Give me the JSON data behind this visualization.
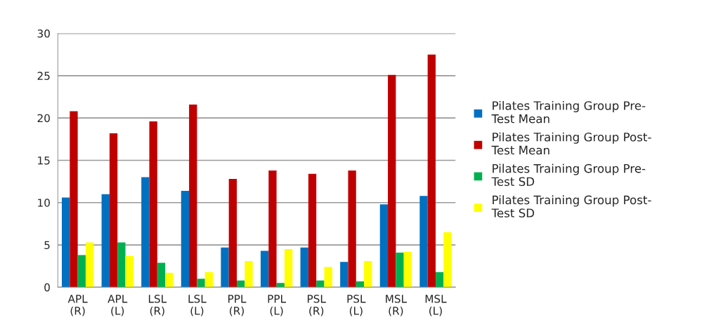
{
  "chart_data": {
    "type": "bar",
    "categories": [
      "APL\n(R)",
      "APL\n(L)",
      "LSL\n(R)",
      "LSL\n(L)",
      "PPL\n(R)",
      "PPL\n(L)",
      "PSL\n(R)",
      "PSL\n(L)",
      "MSL\n(R)",
      "MSL\n(L)"
    ],
    "series": [
      {
        "name": "Pilates Training Group Pre-Test Mean",
        "color": "#0070c0",
        "values": [
          10.6,
          11.0,
          13.0,
          11.4,
          4.7,
          4.3,
          4.7,
          3.0,
          9.8,
          10.8
        ]
      },
      {
        "name": "Pilates Training Group Post-Test Mean",
        "color": "#c00000",
        "values": [
          20.8,
          18.2,
          19.6,
          21.6,
          12.8,
          13.8,
          13.4,
          13.8,
          25.1,
          27.5
        ]
      },
      {
        "name": "Pilates Training Group Pre-Test SD",
        "color": "#00b050",
        "values": [
          3.8,
          5.3,
          2.9,
          1.0,
          0.8,
          0.5,
          0.8,
          0.7,
          4.1,
          1.8
        ]
      },
      {
        "name": "Pilates Training Group Post-Test SD",
        "color": "#ffff00",
        "values": [
          5.3,
          3.7,
          1.7,
          1.8,
          3.1,
          4.5,
          2.4,
          3.1,
          4.2,
          6.5
        ]
      }
    ],
    "ylim": [
      0,
      30
    ],
    "yticks": [
      0,
      5,
      10,
      15,
      20,
      25,
      30
    ],
    "grid": "y",
    "legend": "right"
  }
}
